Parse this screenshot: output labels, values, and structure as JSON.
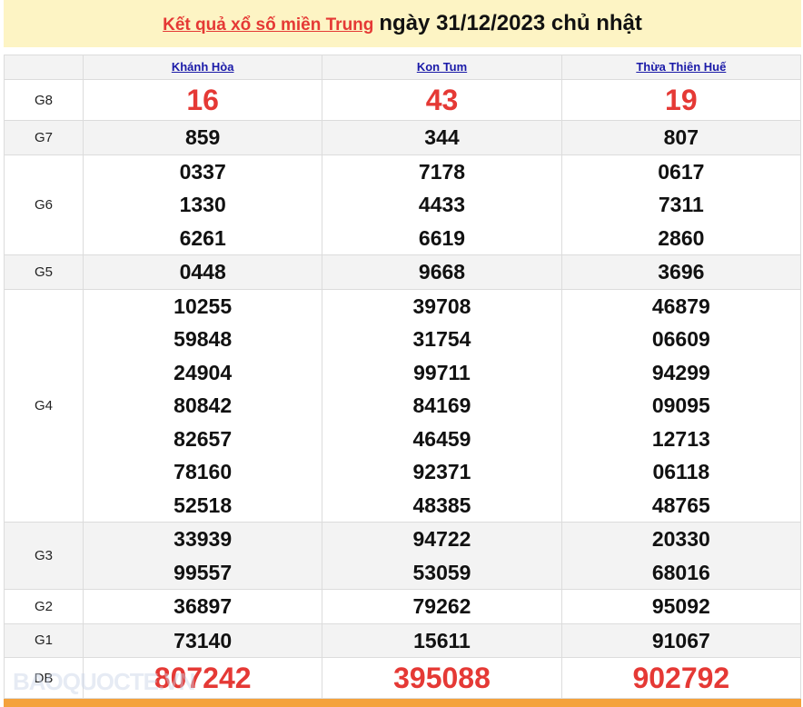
{
  "header": {
    "link": "Kết quả xổ số miền Trung",
    "date": "ngày 31/12/2023 chủ nhật"
  },
  "provinces": [
    "Khánh Hòa",
    "Kon Tum",
    "Thừa Thiên Huế"
  ],
  "prizes": [
    {
      "label": "G8",
      "big": true,
      "values": [
        [
          "16"
        ],
        [
          "43"
        ],
        [
          "19"
        ]
      ]
    },
    {
      "label": "G7",
      "values": [
        [
          "859"
        ],
        [
          "344"
        ],
        [
          "807"
        ]
      ]
    },
    {
      "label": "G6",
      "values": [
        [
          "0337",
          "1330",
          "6261"
        ],
        [
          "7178",
          "4433",
          "6619"
        ],
        [
          "0617",
          "7311",
          "2860"
        ]
      ]
    },
    {
      "label": "G5",
      "values": [
        [
          "0448"
        ],
        [
          "9668"
        ],
        [
          "3696"
        ]
      ]
    },
    {
      "label": "G4",
      "values": [
        [
          "10255",
          "59848",
          "24904",
          "80842",
          "82657",
          "78160",
          "52518"
        ],
        [
          "39708",
          "31754",
          "99711",
          "84169",
          "46459",
          "92371",
          "48385"
        ],
        [
          "46879",
          "06609",
          "94299",
          "09095",
          "12713",
          "06118",
          "48765"
        ]
      ]
    },
    {
      "label": "G3",
      "values": [
        [
          "33939",
          "99557"
        ],
        [
          "94722",
          "53059"
        ],
        [
          "20330",
          "68016"
        ]
      ]
    },
    {
      "label": "G2",
      "values": [
        [
          "36897"
        ],
        [
          "79262"
        ],
        [
          "95092"
        ]
      ]
    },
    {
      "label": "G1",
      "values": [
        [
          "73140"
        ],
        [
          "15611"
        ],
        [
          "91067"
        ]
      ]
    },
    {
      "label": "DB",
      "big": true,
      "values": [
        [
          "807242"
        ],
        [
          "395088"
        ],
        [
          "902792"
        ]
      ]
    }
  ],
  "watermark": "BAOQUOCTE.VN",
  "colors": {
    "header_bg": "#fdf4c4",
    "red": "#e53935",
    "link": "#1a1aa8",
    "bar": "#f4a23c"
  }
}
